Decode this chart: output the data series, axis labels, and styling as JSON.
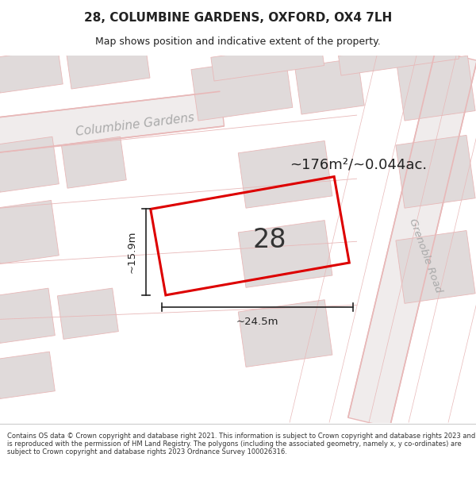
{
  "title": "28, COLUMBINE GARDENS, OXFORD, OX4 7LH",
  "subtitle": "Map shows position and indicative extent of the property.",
  "area_text": "~176m²/~0.044ac.",
  "number_label": "28",
  "dim_width": "~24.5m",
  "dim_height": "~15.9m",
  "footer_text": "Contains OS data © Crown copyright and database right 2021. This information is subject to Crown copyright and database rights 2023 and is reproduced with the permission of HM Land Registry. The polygons (including the associated geometry, namely x, y co-ordinates) are subject to Crown copyright and database rights 2023 Ordnance Survey 100026316.",
  "bg_color": "#ffffff",
  "map_bg": "#f5f2f2",
  "road_color": "#e8b8b8",
  "block_color": "#e0dada",
  "plot_edge": "#dd0000",
  "road_label_color": "#aaaaaa",
  "title_color": "#222222",
  "footer_color": "#333333",
  "dim_color": "#222222",
  "street_label1": "Columbine Gardens",
  "street_label2": "Grenoble Road"
}
